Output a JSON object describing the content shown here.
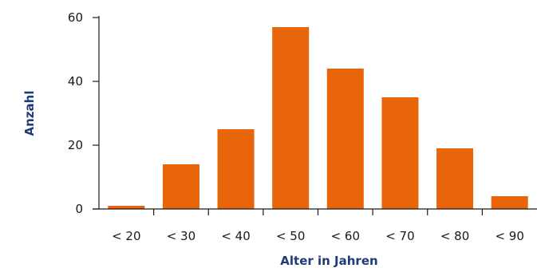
{
  "chart_data": {
    "type": "bar",
    "title": "",
    "xlabel": "Alter in Jahren",
    "ylabel": "Anzahl",
    "categories": [
      "< 20",
      "< 30",
      "< 40",
      "< 50",
      "< 60",
      "< 70",
      "< 80",
      "< 90"
    ],
    "values": [
      1,
      14,
      25,
      57,
      44,
      35,
      19,
      4
    ],
    "ylim": [
      0,
      60
    ],
    "yticks": [
      "0",
      "20",
      "40",
      "60"
    ],
    "grid": false,
    "legend": "none",
    "colors": {
      "bar": "#E8650A",
      "axis_title": "#1F3C78",
      "axis": "#1a1a1a"
    }
  }
}
